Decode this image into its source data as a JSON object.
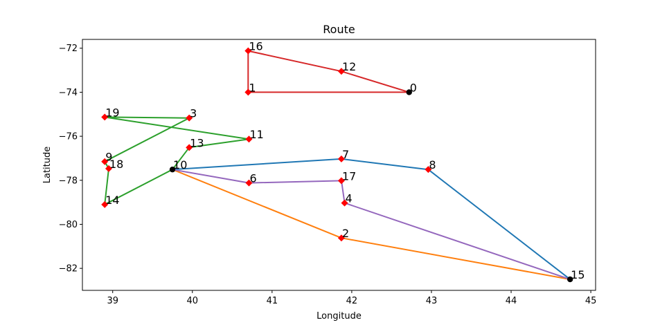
{
  "chart_data": {
    "type": "line",
    "title": "Route",
    "xlabel": "Longitude",
    "ylabel": "Latitude",
    "xlim": [
      38.62,
      45.06
    ],
    "ylim": [
      -83.0,
      -71.6
    ],
    "xticks": [
      39,
      40,
      41,
      42,
      43,
      44,
      45
    ],
    "yticks": [
      -82,
      -80,
      -78,
      -76,
      -74,
      -72
    ],
    "grid": false,
    "legend": "none",
    "nodes": [
      {
        "id": "0",
        "x": 42.72,
        "y": -74.0,
        "kind": "depot"
      },
      {
        "id": "1",
        "x": 40.7,
        "y": -74.0,
        "kind": "customer"
      },
      {
        "id": "2",
        "x": 41.87,
        "y": -80.62,
        "kind": "customer"
      },
      {
        "id": "3",
        "x": 39.96,
        "y": -75.17,
        "kind": "customer"
      },
      {
        "id": "4",
        "x": 41.91,
        "y": -79.03,
        "kind": "customer"
      },
      {
        "id": "6",
        "x": 40.71,
        "y": -78.12,
        "kind": "customer"
      },
      {
        "id": "7",
        "x": 41.87,
        "y": -77.03,
        "kind": "customer"
      },
      {
        "id": "8",
        "x": 42.96,
        "y": -77.51,
        "kind": "customer"
      },
      {
        "id": "9",
        "x": 38.9,
        "y": -77.15,
        "kind": "customer"
      },
      {
        "id": "10",
        "x": 39.75,
        "y": -77.51,
        "kind": "depot"
      },
      {
        "id": "11",
        "x": 40.71,
        "y": -76.13,
        "kind": "customer"
      },
      {
        "id": "12",
        "x": 41.87,
        "y": -73.05,
        "kind": "customer"
      },
      {
        "id": "13",
        "x": 39.96,
        "y": -76.51,
        "kind": "customer"
      },
      {
        "id": "14",
        "x": 38.9,
        "y": -79.1,
        "kind": "customer"
      },
      {
        "id": "15",
        "x": 44.74,
        "y": -82.5,
        "kind": "depot"
      },
      {
        "id": "16",
        "x": 40.7,
        "y": -72.12,
        "kind": "customer"
      },
      {
        "id": "17",
        "x": 41.87,
        "y": -78.02,
        "kind": "customer"
      },
      {
        "id": "18",
        "x": 38.95,
        "y": -77.47,
        "kind": "customer"
      },
      {
        "id": "19",
        "x": 38.9,
        "y": -75.13,
        "kind": "customer"
      }
    ],
    "series": [
      {
        "color": "#1f77b4",
        "route": [
          "10",
          "7",
          "8",
          "15"
        ]
      },
      {
        "color": "#ff7f0e",
        "route": [
          "10",
          "2",
          "15"
        ]
      },
      {
        "color": "#2ca02c",
        "route": [
          "10",
          "14",
          "18",
          "9",
          "3",
          "19",
          "11",
          "13",
          "10"
        ]
      },
      {
        "color": "#d62728",
        "route": [
          "0",
          "12",
          "16",
          "1",
          "0"
        ]
      },
      {
        "color": "#9467bd",
        "route": [
          "10",
          "6",
          "17",
          "4",
          "15"
        ]
      }
    ],
    "customer_marker_color": "#ff0000",
    "depot_marker_color": "#000000"
  }
}
